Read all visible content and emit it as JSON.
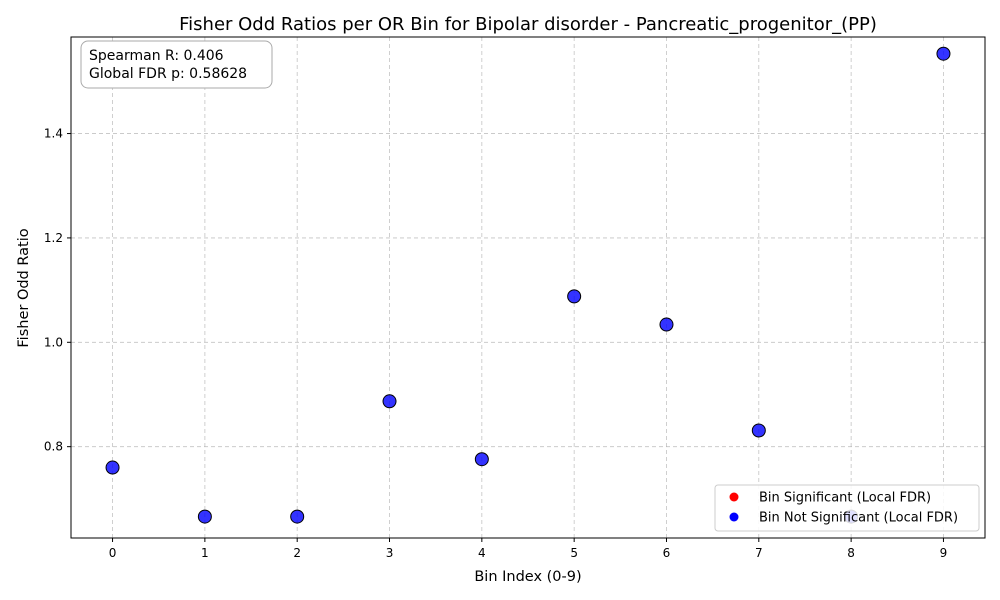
{
  "chart_data": {
    "type": "scatter",
    "title": "Fisher Odd Ratios per OR Bin for Bipolar disorder - Pancreatic_progenitor_(PP)",
    "xlabel": "Bin Index (0-9)",
    "ylabel": "Fisher Odd Ratio",
    "x": [
      0,
      1,
      2,
      3,
      4,
      5,
      6,
      7,
      8,
      9
    ],
    "xticks": [
      "0",
      "1",
      "2",
      "3",
      "4",
      "5",
      "6",
      "7",
      "8",
      "9"
    ],
    "yticks": [
      "0.8",
      "1.0",
      "1.2",
      "1.4"
    ],
    "ytick_values": [
      0.8,
      1.0,
      1.2,
      1.4
    ],
    "xlim": [
      -0.45,
      9.45
    ],
    "ylim": [
      0.625,
      1.585
    ],
    "grid": true,
    "series": [
      {
        "name": "Bin Not Significant (Local FDR)",
        "color": "#0000ff",
        "x": [
          0,
          1,
          2,
          3,
          4,
          5,
          6,
          7,
          8,
          9
        ],
        "values": [
          0.76,
          0.666,
          0.666,
          0.887,
          0.776,
          1.088,
          1.034,
          0.831,
          0.666,
          1.553
        ]
      }
    ],
    "legend": {
      "position": "bottom-right",
      "entries": [
        {
          "label": "Bin Significant (Local FDR)",
          "color": "#ff0000"
        },
        {
          "label": "Bin Not Significant (Local FDR)",
          "color": "#0000ff"
        }
      ]
    },
    "annotations": {
      "spearman": "Spearman R: 0.406",
      "fdr": "Global FDR p: 0.58628"
    }
  }
}
